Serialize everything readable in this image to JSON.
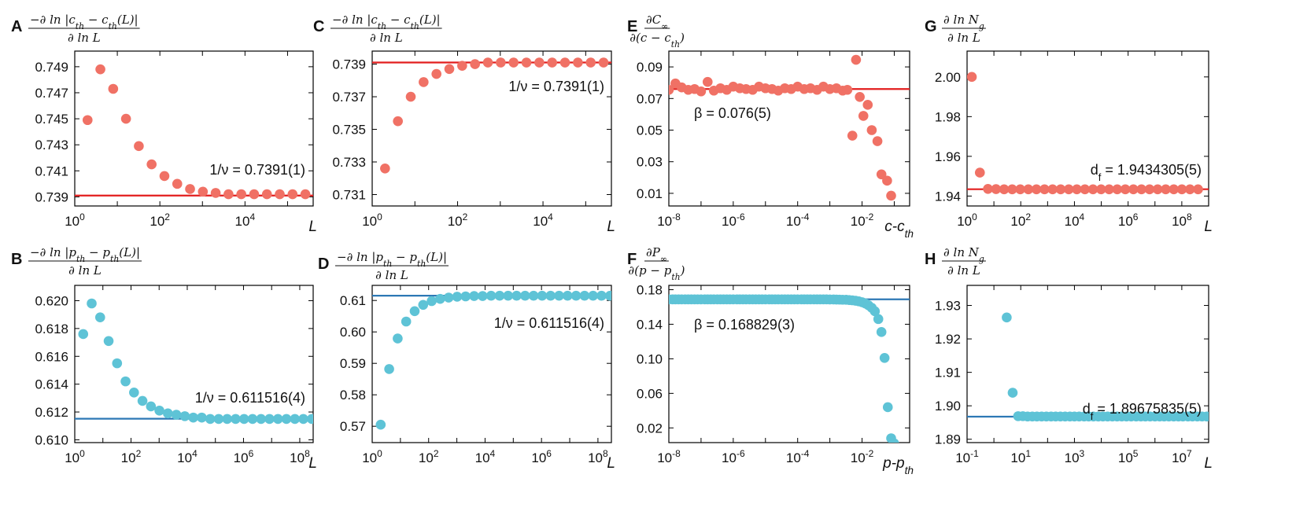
{
  "colors": {
    "red_marker": "#f07165",
    "red_line": "#e21d1d",
    "blue_marker": "#5ec3d6",
    "blue_line": "#2d78b5"
  },
  "chart_data": [
    {
      "panel": "A",
      "type": "scatter",
      "xscale": "log",
      "xlabel": "L",
      "ylabel_num": "−∂ ln |c_th − c_th(L)|",
      "ylabel_den": "∂ ln L",
      "xlim": [
        1,
        400000
      ],
      "ylim": [
        0.7383,
        0.7502
      ],
      "xticks": [
        {
          "v": 1,
          "t": "10",
          "s": "0"
        },
        {
          "v": 100,
          "t": "10",
          "s": "2"
        },
        {
          "v": 10000,
          "t": "10",
          "s": "4"
        }
      ],
      "yticks": [
        {
          "v": 0.739,
          "t": "0.739"
        },
        {
          "v": 0.741,
          "t": "0.741"
        },
        {
          "v": 0.743,
          "t": "0.743"
        },
        {
          "v": 0.745,
          "t": "0.745"
        },
        {
          "v": 0.747,
          "t": "0.747"
        },
        {
          "v": 0.749,
          "t": "0.749"
        }
      ],
      "line": 0.7391,
      "color": "red",
      "annotation": "1/ν = 0.7391(1)",
      "x": [
        2,
        4,
        8,
        16,
        32,
        64,
        128,
        256,
        512,
        1024,
        2048,
        4096,
        8192,
        16384,
        32768,
        65536,
        131072,
        262144
      ],
      "y": [
        0.7449,
        0.7488,
        0.7473,
        0.745,
        0.7429,
        0.7415,
        0.7406,
        0.74,
        0.7396,
        0.7394,
        0.7393,
        0.7392,
        0.7392,
        0.7392,
        0.7392,
        0.7392,
        0.7392,
        0.7392
      ]
    },
    {
      "panel": "B",
      "type": "scatter",
      "xscale": "log",
      "xlabel": "L",
      "ylabel_num": "−∂ ln |p_th − p_th(L)|",
      "ylabel_den": "∂ ln L",
      "xlim": [
        1,
        300000000
      ],
      "ylim": [
        0.6098,
        0.6211
      ],
      "xticks": [
        {
          "v": 1,
          "t": "10",
          "s": "0"
        },
        {
          "v": 100,
          "t": "10",
          "s": "2"
        },
        {
          "v": 10000,
          "t": "10",
          "s": "4"
        },
        {
          "v": 1000000,
          "t": "10",
          "s": "6"
        },
        {
          "v": 100000000,
          "t": "10",
          "s": "8"
        }
      ],
      "yticks": [
        {
          "v": 0.61,
          "t": "0.610"
        },
        {
          "v": 0.612,
          "t": "0.612"
        },
        {
          "v": 0.614,
          "t": "0.614"
        },
        {
          "v": 0.616,
          "t": "0.616"
        },
        {
          "v": 0.618,
          "t": "0.618"
        },
        {
          "v": 0.62,
          "t": "0.620"
        }
      ],
      "line": 0.611516,
      "color": "blue",
      "annotation": "1/ν = 0.611516(4)",
      "x": [
        2,
        4,
        8,
        16,
        32,
        64,
        128,
        256,
        512,
        1024,
        2048,
        4096,
        8192,
        16384,
        32768,
        65536,
        131072,
        262144,
        524288,
        1048576,
        2097152,
        4194304,
        8388608,
        16777216,
        33554432,
        67108864,
        134217728,
        268435456
      ],
      "y": [
        0.6176,
        0.6198,
        0.6188,
        0.6171,
        0.6155,
        0.6142,
        0.6134,
        0.6128,
        0.6124,
        0.6121,
        0.6119,
        0.6118,
        0.6117,
        0.6116,
        0.6116,
        0.6115,
        0.6115,
        0.6115,
        0.6115,
        0.6115,
        0.6115,
        0.6115,
        0.6115,
        0.6115,
        0.6115,
        0.6115,
        0.6115,
        0.6115
      ]
    },
    {
      "panel": "C",
      "type": "scatter",
      "xscale": "log",
      "xlabel": "L",
      "ylabel_num": "−∂ ln |c_th − c_th(L)|",
      "ylabel_den": "∂ ln L",
      "xlim": [
        1,
        400000
      ],
      "ylim": [
        0.7303,
        0.7398
      ],
      "xticks": [
        {
          "v": 1,
          "t": "10",
          "s": "0"
        },
        {
          "v": 100,
          "t": "10",
          "s": "2"
        },
        {
          "v": 10000,
          "t": "10",
          "s": "4"
        }
      ],
      "yticks": [
        {
          "v": 0.731,
          "t": "0.731"
        },
        {
          "v": 0.733,
          "t": "0.733"
        },
        {
          "v": 0.735,
          "t": "0.735"
        },
        {
          "v": 0.737,
          "t": "0.737"
        },
        {
          "v": 0.739,
          "t": "0.739"
        }
      ],
      "line": 0.7391,
      "color": "red",
      "annotation": "1/ν = 0.7391(1)",
      "x": [
        2,
        4,
        8,
        16,
        32,
        64,
        128,
        256,
        512,
        1024,
        2048,
        4096,
        8192,
        16384,
        32768,
        65536,
        131072,
        262144
      ],
      "y": [
        0.7326,
        0.7355,
        0.737,
        0.7379,
        0.7384,
        0.7387,
        0.7389,
        0.739,
        0.7391,
        0.7391,
        0.7391,
        0.7391,
        0.7391,
        0.7391,
        0.7391,
        0.7391,
        0.7391,
        0.7391
      ]
    },
    {
      "panel": "D",
      "type": "scatter",
      "xscale": "log",
      "xlabel": "L",
      "ylabel_num": "−∂ ln |p_th − p_th(L)|",
      "ylabel_den": "∂ ln L",
      "xlim": [
        1,
        300000000
      ],
      "ylim": [
        0.5648,
        0.6148
      ],
      "xticks": [
        {
          "v": 1,
          "t": "10",
          "s": "0"
        },
        {
          "v": 100,
          "t": "10",
          "s": "2"
        },
        {
          "v": 10000,
          "t": "10",
          "s": "4"
        },
        {
          "v": 1000000,
          "t": "10",
          "s": "6"
        },
        {
          "v": 100000000,
          "t": "10",
          "s": "8"
        }
      ],
      "yticks": [
        {
          "v": 0.57,
          "t": "0.57"
        },
        {
          "v": 0.58,
          "t": "0.58"
        },
        {
          "v": 0.59,
          "t": "0.59"
        },
        {
          "v": 0.6,
          "t": "0.60"
        },
        {
          "v": 0.61,
          "t": "0.61"
        }
      ],
      "line": 0.611516,
      "color": "blue",
      "annotation": "1/ν = 0.611516(4)",
      "x": [
        2,
        4,
        8,
        16,
        32,
        64,
        128,
        256,
        512,
        1024,
        2048,
        4096,
        8192,
        16384,
        32768,
        65536,
        131072,
        262144,
        524288,
        1048576,
        2097152,
        4194304,
        8388608,
        16777216,
        33554432,
        67108864,
        134217728,
        268435456
      ],
      "y": [
        0.5705,
        0.5882,
        0.5979,
        0.6033,
        0.6066,
        0.6086,
        0.6098,
        0.6105,
        0.6109,
        0.6112,
        0.6113,
        0.6114,
        0.6114,
        0.6115,
        0.6115,
        0.6115,
        0.6115,
        0.6115,
        0.6115,
        0.6115,
        0.6115,
        0.6115,
        0.6115,
        0.6115,
        0.6115,
        0.6115,
        0.6115,
        0.6115
      ]
    },
    {
      "panel": "E",
      "type": "scatter",
      "xscale": "log",
      "xlabel": "c-c_th",
      "ylabel_num": "∂C_∞",
      "ylabel_den": "∂(c − c_th)",
      "xlim": [
        1e-08,
        0.3
      ],
      "ylim": [
        0.002,
        0.1
      ],
      "xticks": [
        {
          "v": 1e-08,
          "t": "10",
          "s": "-8"
        },
        {
          "v": 1e-06,
          "t": "10",
          "s": "-6"
        },
        {
          "v": 0.0001,
          "t": "10",
          "s": "-4"
        },
        {
          "v": 0.01,
          "t": "10",
          "s": "-2"
        }
      ],
      "yticks": [
        {
          "v": 0.01,
          "t": "0.01"
        },
        {
          "v": 0.03,
          "t": "0.03"
        },
        {
          "v": 0.05,
          "t": "0.05"
        },
        {
          "v": 0.07,
          "t": "0.07"
        },
        {
          "v": 0.09,
          "t": "0.09"
        }
      ],
      "line": 0.076,
      "color": "red",
      "annotation": "β = 0.076(5)",
      "x": [
        1e-08,
        1.6e-08,
        2.5e-08,
        4e-08,
        6.3e-08,
        1e-07,
        1.6e-07,
        2.5e-07,
        4e-07,
        6.3e-07,
        1e-06,
        1.6e-06,
        2.5e-06,
        4e-06,
        6.3e-06,
        1e-05,
        1.6e-05,
        2.5e-05,
        4e-05,
        6.3e-05,
        0.0001,
        0.00016,
        0.00025,
        0.0004,
        0.00063,
        0.001,
        0.0016,
        0.0025,
        0.0035,
        0.005,
        0.0065,
        0.0085,
        0.011,
        0.015,
        0.02,
        0.03,
        0.04,
        0.06,
        0.08
      ],
      "y": [
        0.0755,
        0.0795,
        0.077,
        0.0755,
        0.076,
        0.0745,
        0.0805,
        0.075,
        0.0765,
        0.0755,
        0.0775,
        0.0765,
        0.076,
        0.0755,
        0.0775,
        0.0765,
        0.076,
        0.075,
        0.0765,
        0.076,
        0.0775,
        0.076,
        0.0765,
        0.0755,
        0.0775,
        0.076,
        0.0765,
        0.075,
        0.0755,
        0.0465,
        0.0945,
        0.071,
        0.059,
        0.066,
        0.05,
        0.043,
        0.022,
        0.018,
        0.0085
      ]
    },
    {
      "panel": "F",
      "type": "scatter",
      "xscale": "log",
      "xlabel": "p-p_th",
      "ylabel_num": "∂P_∞",
      "ylabel_den": "∂(p − p_th)",
      "xlim": [
        1e-08,
        0.3
      ],
      "ylim": [
        0.003,
        0.185
      ],
      "xticks": [
        {
          "v": 1e-08,
          "t": "10",
          "s": "-8"
        },
        {
          "v": 1e-06,
          "t": "10",
          "s": "-6"
        },
        {
          "v": 0.0001,
          "t": "10",
          "s": "-4"
        },
        {
          "v": 0.01,
          "t": "10",
          "s": "-2"
        }
      ],
      "yticks": [
        {
          "v": 0.02,
          "t": "0.02"
        },
        {
          "v": 0.06,
          "t": "0.06"
        },
        {
          "v": 0.1,
          "t": "0.10"
        },
        {
          "v": 0.14,
          "t": "0.14"
        },
        {
          "v": 0.18,
          "t": "0.18"
        }
      ],
      "line": 0.168829,
      "color": "blue",
      "annotation": "β = 0.168829(3)",
      "x": [
        1e-08,
        1.3e-08,
        1.6e-08,
        2e-08,
        2.5e-08,
        3.2e-08,
        4e-08,
        5e-08,
        6.3e-08,
        7.9e-08,
        1e-07,
        1.3e-07,
        1.6e-07,
        2e-07,
        2.5e-07,
        3.2e-07,
        4e-07,
        5e-07,
        6.3e-07,
        7.9e-07,
        1e-06,
        1.3e-06,
        1.6e-06,
        2e-06,
        2.5e-06,
        3.2e-06,
        4e-06,
        5e-06,
        6.3e-06,
        7.9e-06,
        1e-05,
        1.3e-05,
        1.6e-05,
        2e-05,
        2.5e-05,
        3.2e-05,
        4e-05,
        5e-05,
        6.3e-05,
        7.9e-05,
        0.0001,
        0.00013,
        0.00016,
        0.0002,
        0.00025,
        0.00032,
        0.0004,
        0.0005,
        0.00063,
        0.00079,
        0.001,
        0.0013,
        0.0016,
        0.002,
        0.0025,
        0.0032,
        0.004,
        0.005,
        0.0063,
        0.0079,
        0.01,
        0.0126,
        0.0158,
        0.02,
        0.025,
        0.032,
        0.04,
        0.05,
        0.063,
        0.08,
        0.1
      ],
      "y": [
        0.1688,
        0.1688,
        0.1688,
        0.1688,
        0.1688,
        0.1688,
        0.1688,
        0.1688,
        0.1688,
        0.1688,
        0.1688,
        0.1688,
        0.1688,
        0.1688,
        0.1688,
        0.1688,
        0.1688,
        0.1688,
        0.1688,
        0.1688,
        0.1688,
        0.1688,
        0.1688,
        0.1688,
        0.1688,
        0.1688,
        0.1688,
        0.1688,
        0.1688,
        0.1688,
        0.1688,
        0.1688,
        0.1688,
        0.1688,
        0.1688,
        0.1688,
        0.1688,
        0.1688,
        0.1688,
        0.1688,
        0.1688,
        0.1688,
        0.1688,
        0.1688,
        0.1688,
        0.1688,
        0.1688,
        0.1688,
        0.1688,
        0.1688,
        0.1687,
        0.1687,
        0.1686,
        0.1685,
        0.1684,
        0.1683,
        0.168,
        0.1677,
        0.1672,
        0.1665,
        0.1655,
        0.164,
        0.162,
        0.159,
        0.155,
        0.146,
        0.131,
        0.101,
        0.044,
        0.008,
        0.002
      ]
    },
    {
      "panel": "G",
      "type": "scatter",
      "xscale": "log",
      "xlabel": "L",
      "ylabel_num": "∂ ln N_g",
      "ylabel_den": "∂ ln L",
      "xlim": [
        1,
        1000000000
      ],
      "ylim": [
        1.935,
        2.013
      ],
      "xticks": [
        {
          "v": 1,
          "t": "10",
          "s": "0"
        },
        {
          "v": 100,
          "t": "10",
          "s": "2"
        },
        {
          "v": 10000,
          "t": "10",
          "s": "4"
        },
        {
          "v": 1000000,
          "t": "10",
          "s": "6"
        },
        {
          "v": 100000000,
          "t": "10",
          "s": "8"
        }
      ],
      "yticks": [
        {
          "v": 1.94,
          "t": "1.94"
        },
        {
          "v": 1.96,
          "t": "1.96"
        },
        {
          "v": 1.98,
          "t": "1.98"
        },
        {
          "v": 2.0,
          "t": "2.00"
        }
      ],
      "line": 1.9434305,
      "color": "red",
      "annotation": "d_f = 1.9434305(5)",
      "x": [
        1.5,
        3,
        6,
        12,
        24,
        48,
        96,
        192,
        384,
        768,
        1536,
        3072,
        6144,
        12288,
        24576,
        49152,
        98304,
        196608,
        393216,
        786432,
        1572864,
        3145728,
        6291456,
        12582912,
        25165824,
        50331648,
        100663296,
        201326592,
        402653184
      ],
      "y": [
        2.0,
        1.9518,
        1.9436,
        1.9435,
        1.9434,
        1.9434,
        1.9434,
        1.9434,
        1.9434,
        1.9434,
        1.9434,
        1.9434,
        1.9434,
        1.9434,
        1.9434,
        1.9434,
        1.9434,
        1.9434,
        1.9434,
        1.9434,
        1.9434,
        1.9434,
        1.9434,
        1.9434,
        1.9434,
        1.9434,
        1.9434,
        1.9434,
        1.9434
      ]
    },
    {
      "panel": "H",
      "type": "scatter",
      "xscale": "log",
      "xlabel": "L",
      "ylabel_num": "∂ ln N_g",
      "ylabel_den": "∂ ln L",
      "xlim": [
        0.1,
        100000000
      ],
      "ylim": [
        1.889,
        1.936
      ],
      "xticks": [
        {
          "v": 0.1,
          "t": "10",
          "s": "-1"
        },
        {
          "v": 10,
          "t": "10",
          "s": "1"
        },
        {
          "v": 1000,
          "t": "10",
          "s": "3"
        },
        {
          "v": 100000,
          "t": "10",
          "s": "5"
        },
        {
          "v": 10000000,
          "t": "10",
          "s": "7"
        }
      ],
      "yticks": [
        {
          "v": 1.89,
          "t": "1.89"
        },
        {
          "v": 1.9,
          "t": "1.90"
        },
        {
          "v": 1.91,
          "t": "1.91"
        },
        {
          "v": 1.92,
          "t": "1.92"
        },
        {
          "v": 1.93,
          "t": "1.93"
        }
      ],
      "line": 1.89675835,
      "color": "blue",
      "annotation": "d_f = 1.89675835(5)",
      "x": [
        3,
        5,
        8,
        12,
        18,
        27,
        40,
        60,
        90,
        135,
        200,
        300,
        450,
        680,
        1000,
        1500,
        2300,
        3400,
        5100,
        7700,
        11500,
        17300,
        26000,
        39000,
        58000,
        87000,
        130000,
        200000,
        300000,
        440000,
        660000,
        1000000,
        1500000,
        2200000,
        3300000,
        5000000,
        7500000,
        11000000,
        17000000,
        25000000,
        38000000,
        57000000,
        85000000
      ],
      "y": [
        1.9264,
        1.9039,
        1.8969,
        1.8969,
        1.8968,
        1.8968,
        1.8968,
        1.8968,
        1.8968,
        1.8968,
        1.8968,
        1.8968,
        1.8968,
        1.8968,
        1.8968,
        1.8968,
        1.8968,
        1.8968,
        1.8968,
        1.8968,
        1.8968,
        1.8968,
        1.8968,
        1.8968,
        1.8968,
        1.8968,
        1.8968,
        1.8968,
        1.8968,
        1.8968,
        1.8968,
        1.8968,
        1.8968,
        1.8968,
        1.8968,
        1.8968,
        1.8968,
        1.8968,
        1.8968,
        1.8968,
        1.8968,
        1.8968,
        1.8968
      ]
    }
  ]
}
